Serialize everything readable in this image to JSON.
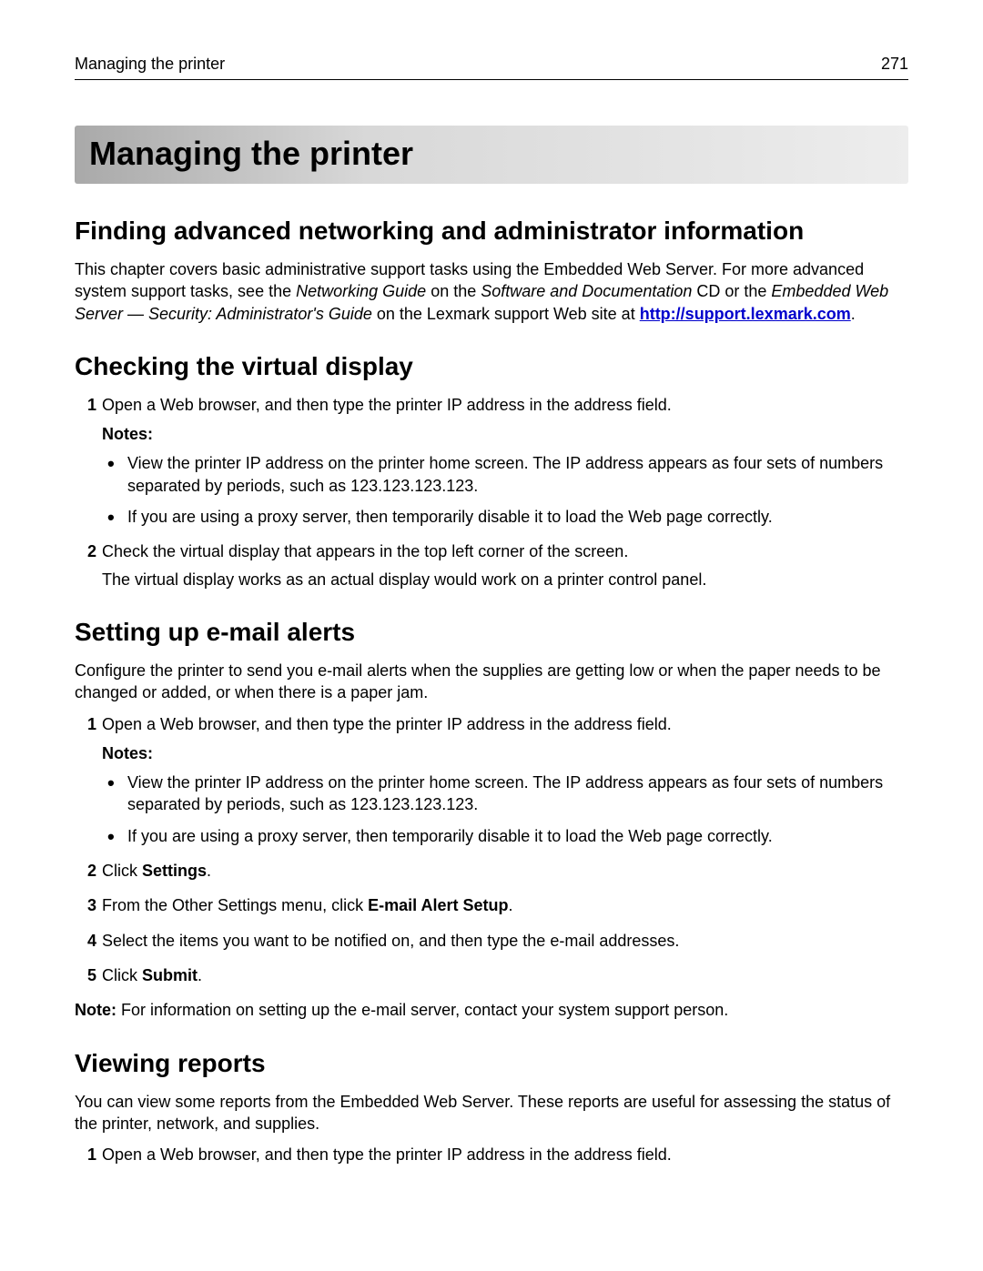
{
  "header": {
    "section_title": "Managing the printer",
    "page_number": "271"
  },
  "chapter_title": "Managing the printer",
  "section1": {
    "heading": "Finding advanced networking and administrator information",
    "p1_a": "This chapter covers basic administrative support tasks using the Embedded Web Server. For more advanced system support tasks, see the ",
    "p1_i1": "Networking Guide",
    "p1_b": " on the ",
    "p1_i2": "Software and Documentation",
    "p1_c": " CD or the ",
    "p1_i3": "Embedded Web Server — Security: Administrator's Guide",
    "p1_d": " on the Lexmark support Web site at ",
    "link_text": "http://support.lexmark.com",
    "p1_e": "."
  },
  "section2": {
    "heading": "Checking the virtual display",
    "step1": "Open a Web browser, and then type the printer IP address in the address field.",
    "notes_label": "Notes:",
    "note_a": "View the printer IP address on the printer home screen. The IP address appears as four sets of numbers separated by periods, such as 123.123.123.123.",
    "note_b": "If you are using a proxy server, then temporarily disable it to load the Web page correctly.",
    "step2": "Check the virtual display that appears in the top left corner of the screen.",
    "step2_sub": "The virtual display works as an actual display would work on a printer control panel."
  },
  "section3": {
    "heading": "Setting up e‑mail alerts",
    "intro": "Configure the printer to send you e‑mail alerts when the supplies are getting low or when the paper needs to be changed or added, or when there is a paper jam.",
    "step1": "Open a Web browser, and then type the printer IP address in the address field.",
    "notes_label": "Notes:",
    "note_a": "View the printer IP address on the printer home screen. The IP address appears as four sets of numbers separated by periods, such as 123.123.123.123.",
    "note_b": "If you are using a proxy server, then temporarily disable it to load the Web page correctly.",
    "step2_a": "Click ",
    "step2_b": "Settings",
    "step2_c": ".",
    "step3_a": "From the Other Settings menu, click ",
    "step3_b": "E‑mail Alert Setup",
    "step3_c": ".",
    "step4": "Select the items you want to be notified on, and then type the e‑mail addresses.",
    "step5_a": "Click ",
    "step5_b": "Submit",
    "step5_c": ".",
    "footnote_a": "Note:",
    "footnote_b": " For information on setting up the e‑mail server, contact your system support person."
  },
  "section4": {
    "heading": "Viewing reports",
    "intro": "You can view some reports from the Embedded Web Server. These reports are useful for assessing the status of the printer, network, and supplies.",
    "step1": "Open a Web browser, and then type the printer IP address in the address field."
  }
}
